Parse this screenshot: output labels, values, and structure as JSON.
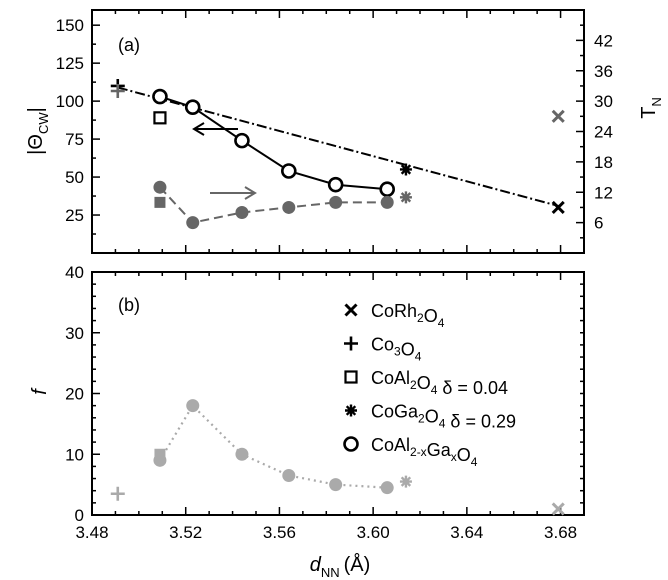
{
  "chart_data": [
    {
      "type": "line",
      "panel_label": "(a)",
      "ylabel": "|Θ",
      "ylabel_sub": "CW",
      "ylabel_end": "|",
      "y2label": "T",
      "y2label_sub": "N",
      "xlim": [
        3.48,
        3.69
      ],
      "ylim": [
        0,
        160
      ],
      "yticks": [
        "25",
        "50",
        "75",
        "100",
        "125",
        "150"
      ],
      "y2lim": [
        0,
        48
      ],
      "y2ticks": [
        "6",
        "12",
        "18",
        "24",
        "30",
        "36",
        "42"
      ],
      "series": [
        {
          "key": "theta_alga",
          "axis": "left",
          "marker": "circle-open",
          "color": "#000000",
          "line": "solid",
          "x": [
            3.509,
            3.523,
            3.544,
            3.564,
            3.584,
            3.606
          ],
          "y": [
            103,
            96,
            74,
            54,
            45,
            42
          ]
        },
        {
          "key": "tn_alga",
          "axis": "right",
          "marker": "circle-filled",
          "color": "#666666",
          "line": "dashed",
          "x": [
            3.509,
            3.523,
            3.544,
            3.564,
            3.584,
            3.606
          ],
          "y": [
            13,
            6,
            8,
            9,
            10,
            10
          ]
        },
        {
          "key": "trend",
          "axis": "left",
          "marker": "none",
          "color": "#000000",
          "line": "dashdot",
          "x": [
            3.491,
            3.679
          ],
          "y": [
            109,
            31
          ]
        },
        {
          "key": "theta_others",
          "axis": "left",
          "marker": "mixed",
          "color": "#000000",
          "points": [
            {
              "x": 3.491,
              "y": 110,
              "marker": "plus"
            },
            {
              "x": 3.509,
              "y": 89,
              "marker": "square-open"
            },
            {
              "x": 3.614,
              "y": 55,
              "marker": "asterisk"
            },
            {
              "x": 3.679,
              "y": 30,
              "marker": "cross"
            }
          ]
        },
        {
          "key": "tn_others",
          "axis": "right",
          "marker": "mixed",
          "color": "#666666",
          "points": [
            {
              "x": 3.491,
              "y": 32,
              "marker": "plus"
            },
            {
              "x": 3.509,
              "y": 10,
              "marker": "square-filled"
            },
            {
              "x": 3.614,
              "y": 11,
              "marker": "asterisk"
            },
            {
              "x": 3.679,
              "y": 27,
              "marker": "cross"
            }
          ]
        }
      ],
      "arrows": [
        {
          "direction": "left",
          "points_to": "left axis",
          "color": "#000000"
        },
        {
          "direction": "right",
          "points_to": "right axis",
          "color": "#666666"
        }
      ]
    },
    {
      "type": "line",
      "panel_label": "(b)",
      "ylabel": "f",
      "xlabel": "d",
      "xlabel_sub": "NN",
      "xlabel_unit": "(Å)",
      "xlim": [
        3.48,
        3.69
      ],
      "xticks": [
        "3.48",
        "3.52",
        "3.56",
        "3.60",
        "3.64",
        "3.68"
      ],
      "ylim": [
        0,
        40
      ],
      "yticks": [
        "0",
        "10",
        "20",
        "30",
        "40"
      ],
      "series": [
        {
          "key": "f_alga",
          "marker": "circle-filled",
          "color": "#aaaaaa",
          "line": "dotted",
          "x": [
            3.509,
            3.523,
            3.544,
            3.564,
            3.584,
            3.606
          ],
          "y": [
            9,
            18,
            10,
            6.5,
            5,
            4.5
          ]
        },
        {
          "key": "f_others",
          "marker": "mixed",
          "color": "#aaaaaa",
          "points": [
            {
              "x": 3.491,
              "y": 3.5,
              "marker": "plus"
            },
            {
              "x": 3.509,
              "y": 10,
              "marker": "square-filled"
            },
            {
              "x": 3.614,
              "y": 5.5,
              "marker": "asterisk"
            },
            {
              "x": 3.679,
              "y": 1,
              "marker": "cross"
            }
          ]
        }
      ],
      "legend": {
        "placement": "right",
        "entries": [
          {
            "marker": "cross",
            "parts": [
              {
                "t": "CoRh"
              },
              {
                "s": "2"
              },
              {
                "t": "O"
              },
              {
                "s": "4"
              }
            ]
          },
          {
            "marker": "plus",
            "parts": [
              {
                "t": "Co"
              },
              {
                "s": "3"
              },
              {
                "t": "O"
              },
              {
                "s": "4"
              }
            ]
          },
          {
            "marker": "square-open",
            "parts": [
              {
                "t": "CoAl"
              },
              {
                "s": "2"
              },
              {
                "t": "O"
              },
              {
                "s": "4"
              },
              {
                "t": " δ = 0.04"
              }
            ]
          },
          {
            "marker": "asterisk",
            "parts": [
              {
                "t": "CoGa"
              },
              {
                "s": "2"
              },
              {
                "t": "O"
              },
              {
                "s": "4"
              },
              {
                "t": " δ = 0.29"
              }
            ]
          },
          {
            "marker": "circle-open",
            "parts": [
              {
                "t": "CoAl"
              },
              {
                "s": "2-x"
              },
              {
                "t": "Ga"
              },
              {
                "s": "x"
              },
              {
                "t": "O"
              },
              {
                "s": "4"
              }
            ]
          }
        ]
      }
    }
  ]
}
